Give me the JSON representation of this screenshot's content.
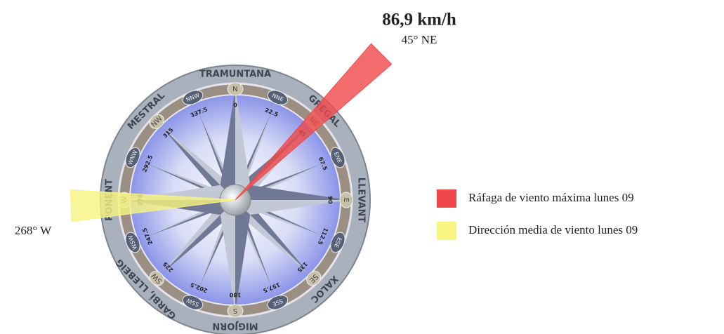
{
  "chart_data": {
    "type": "windrose",
    "title": "86,9 km/h",
    "series": [
      {
        "name": "Ráfaga de viento máxima lunes 09",
        "color": "#f0484a",
        "values": [
          45
        ],
        "value_labels": [
          "45° NE"
        ]
      },
      {
        "name": "Dirección media de viento lunes 09",
        "color": "#f8f480",
        "values": [
          268
        ],
        "value_labels": [
          "268° W"
        ]
      }
    ],
    "wind_names": [
      "TRAMUNTANA",
      "GREGAL",
      "LLEVANT",
      "XALOC",
      "MIGJORN",
      "GARBÍ, LLEBEIG",
      "PONENT",
      "MESTRAL"
    ],
    "directions": [
      "N",
      "NNE",
      "NE",
      "ENE",
      "E",
      "ESE",
      "SE",
      "SSE",
      "S",
      "SSW",
      "SW",
      "WSW",
      "W",
      "WNW",
      "NW",
      "NNW"
    ],
    "angle_ticks": [
      0,
      22.5,
      45,
      67.5,
      90,
      112.5,
      135,
      157.5,
      180,
      202.5,
      225,
      247.5,
      270,
      292.5,
      315,
      337.5
    ]
  }
}
